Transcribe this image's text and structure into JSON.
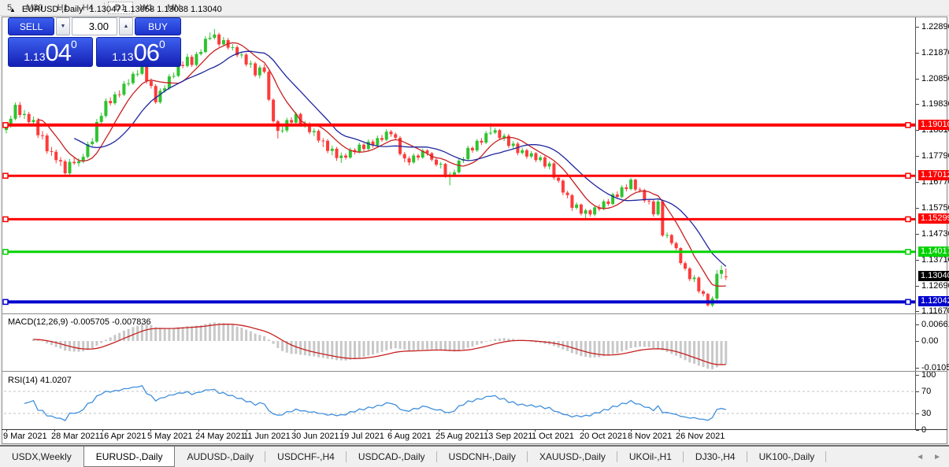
{
  "toolbar": {
    "timeframes": [
      "5",
      "M30",
      "H1",
      "H4",
      "D1",
      "W1",
      "MN"
    ],
    "active": "D1"
  },
  "chart_header": {
    "collapse_icon": "▲",
    "title": "EURUSD-,Daily",
    "ohlc_text": "1.13047 1.13058 1.13038 1.13040"
  },
  "trade_panel": {
    "sell_label": "SELL",
    "buy_label": "BUY",
    "volume": "3.00",
    "spin_down_icon": "▼",
    "spin_up_icon": "▲",
    "sell_price": {
      "prefix": "1.13",
      "big": "04",
      "sup": "0"
    },
    "buy_price": {
      "prefix": "1.13",
      "big": "06",
      "sup": "0"
    }
  },
  "price_axis": {
    "ticks": [
      "1.22890",
      "1.21870",
      "1.20850",
      "1.19830",
      "1.18810",
      "1.17790",
      "1.16770",
      "1.15750",
      "1.14730",
      "1.13710",
      "1.12690",
      "1.11670"
    ]
  },
  "time_axis": {
    "labels": [
      "9 Mar 2021",
      "28 Mar 2021",
      "16 Apr 2021",
      "5 May 2021",
      "24 May 2021",
      "11 Jun 2021",
      "30 Jun 2021",
      "19 Jul 2021",
      "6 Aug 2021",
      "25 Aug 2021",
      "13 Sep 2021",
      "1 Oct 2021",
      "20 Oct 2021",
      "8 Nov 2021",
      "26 Nov 2021"
    ]
  },
  "indicators": {
    "macd_label": "MACD(12,26,9) -0.005705 -0.007836",
    "rsi_label": "RSI(14) 41.0207",
    "macd_axis_ticks": [
      "0.006613",
      "0.00",
      "-0.010595"
    ],
    "rsi_axis_ticks": [
      "100",
      "70",
      "30",
      "0"
    ]
  },
  "tabs": {
    "items": [
      "USDX,Weekly",
      "EURUSD-,Daily",
      "AUDUSD-,Daily",
      "USDCHF-,H4",
      "USDCAD-,Daily",
      "USDCNH-,Daily",
      "XAUUSD-,Daily",
      "UKOil-,H1",
      "DJ30-,H4",
      "UK100-,Daily"
    ],
    "active_index": 1,
    "scroll_left_icon": "◄",
    "scroll_right_icon": "►"
  },
  "chart_data": [
    {
      "type": "candlestick",
      "title": "EURUSD-,Daily",
      "ylim": [
        1.1162,
        1.2307
      ],
      "up_color": "#2fc32f",
      "down_color": "#fd3b3b",
      "ma_fast": {
        "period": 8,
        "color": "#c62020"
      },
      "ma_slow": {
        "period": 16,
        "color": "#20269e"
      },
      "hlines": [
        {
          "value": 1.1901,
          "label": "1.19010",
          "color": "#fe0000",
          "width": 4
        },
        {
          "value": 1.17012,
          "label": "1.17012",
          "color": "#fe0000",
          "width": 3
        },
        {
          "value": 1.15299,
          "label": "1.15299",
          "color": "#fe0000",
          "width": 3
        },
        {
          "value": 1.14017,
          "label": "1.14017",
          "color": "#00d300",
          "width": 3
        },
        {
          "value": 1.12042,
          "label": "1.12042",
          "color": "#0000cf",
          "width": 4
        }
      ],
      "current_price": {
        "value": 1.1304,
        "label": "1.13040",
        "color": "#000000"
      },
      "candles": [
        [
          1.1882,
          1.1912,
          1.1868,
          1.19
        ],
        [
          1.19,
          1.1938,
          1.189,
          1.1926
        ],
        [
          1.1926,
          1.199,
          1.192,
          1.1981
        ],
        [
          1.1981,
          1.1992,
          1.193,
          1.1941
        ],
        [
          1.1941,
          1.1961,
          1.1925,
          1.1945
        ],
        [
          1.1945,
          1.1953,
          1.19,
          1.1913
        ],
        [
          1.1913,
          1.1935,
          1.1905,
          1.1921
        ],
        [
          1.1921,
          1.1929,
          1.185,
          1.1861
        ],
        [
          1.1861,
          1.1878,
          1.1844,
          1.186
        ],
        [
          1.186,
          1.1868,
          1.1788,
          1.1798
        ],
        [
          1.1798,
          1.1815,
          1.178,
          1.1796
        ],
        [
          1.1796,
          1.1805,
          1.175,
          1.1763
        ],
        [
          1.1763,
          1.1775,
          1.174,
          1.1758
        ],
        [
          1.1758,
          1.1765,
          1.17,
          1.1711
        ],
        [
          1.1711,
          1.1768,
          1.1704,
          1.1756
        ],
        [
          1.1756,
          1.1773,
          1.1744,
          1.1751
        ],
        [
          1.1751,
          1.177,
          1.1738,
          1.1758
        ],
        [
          1.1758,
          1.1788,
          1.175,
          1.1776
        ],
        [
          1.1776,
          1.1836,
          1.177,
          1.1826
        ],
        [
          1.1826,
          1.185,
          1.1818,
          1.1836
        ],
        [
          1.1836,
          1.1925,
          1.183,
          1.1913
        ],
        [
          1.1913,
          1.195,
          1.1905,
          1.1937
        ],
        [
          1.1937,
          1.2006,
          1.193,
          1.1996
        ],
        [
          1.1996,
          1.201,
          1.1978,
          1.1987
        ],
        [
          1.1987,
          1.2032,
          1.198,
          1.2022
        ],
        [
          1.2022,
          1.2038,
          1.201,
          1.2021
        ],
        [
          1.2021,
          1.2075,
          1.2015,
          1.2064
        ],
        [
          1.2064,
          1.2082,
          1.2055,
          1.2066
        ],
        [
          1.2066,
          1.2112,
          1.206,
          1.2103
        ],
        [
          1.2103,
          1.2118,
          1.2092,
          1.2103
        ],
        [
          1.2103,
          1.215,
          1.2098,
          1.2141
        ],
        [
          1.2141,
          1.2148,
          1.2064,
          1.2074
        ],
        [
          1.2074,
          1.2085,
          1.2045,
          1.2055
        ],
        [
          1.2055,
          1.2062,
          1.1985,
          1.1991
        ],
        [
          1.1991,
          1.2046,
          1.1985,
          1.2036
        ],
        [
          1.2036,
          1.2058,
          1.2028,
          1.2046
        ],
        [
          1.2046,
          1.2102,
          1.204,
          1.2093
        ],
        [
          1.2093,
          1.2108,
          1.2085,
          1.2095
        ],
        [
          1.2095,
          1.2148,
          1.209,
          1.2138
        ],
        [
          1.2138,
          1.2152,
          1.2125,
          1.2134
        ],
        [
          1.2134,
          1.2182,
          1.2128,
          1.217
        ],
        [
          1.217,
          1.2178,
          1.213,
          1.2138
        ],
        [
          1.2138,
          1.219,
          1.2132,
          1.2181
        ],
        [
          1.2181,
          1.22,
          1.2175,
          1.2189
        ],
        [
          1.2189,
          1.2251,
          1.2184,
          1.2241
        ],
        [
          1.2241,
          1.2266,
          1.2235,
          1.2245
        ],
        [
          1.2245,
          1.228,
          1.2238,
          1.2258
        ],
        [
          1.2258,
          1.2265,
          1.221,
          1.2219
        ],
        [
          1.2219,
          1.2248,
          1.2212,
          1.2236
        ],
        [
          1.2236,
          1.2244,
          1.2198,
          1.2206
        ],
        [
          1.2206,
          1.222,
          1.2195,
          1.2208
        ],
        [
          1.2208,
          1.2215,
          1.2168,
          1.2176
        ],
        [
          1.2176,
          1.219,
          1.2165,
          1.2179
        ],
        [
          1.2179,
          1.2185,
          1.2132,
          1.214
        ],
        [
          1.214,
          1.2155,
          1.2126,
          1.2144
        ],
        [
          1.2144,
          1.215,
          1.209,
          1.2097
        ],
        [
          1.2097,
          1.2136,
          1.2085,
          1.2128
        ],
        [
          1.2128,
          1.214,
          1.2104,
          1.2111
        ],
        [
          1.2111,
          1.2118,
          1.1995,
          1.2001
        ],
        [
          1.2001,
          1.2006,
          1.191,
          1.1916
        ],
        [
          1.1916,
          1.1922,
          1.1848,
          1.1878
        ],
        [
          1.1878,
          1.1895,
          1.187,
          1.188
        ],
        [
          1.188,
          1.193,
          1.1872,
          1.1921
        ],
        [
          1.1921,
          1.1932,
          1.1902,
          1.1911
        ],
        [
          1.1911,
          1.1952,
          1.1905,
          1.1945
        ],
        [
          1.1945,
          1.195,
          1.1895,
          1.1904
        ],
        [
          1.1904,
          1.1918,
          1.189,
          1.1906
        ],
        [
          1.1906,
          1.1912,
          1.1865,
          1.1873
        ],
        [
          1.1873,
          1.1888,
          1.1858,
          1.1878
        ],
        [
          1.1878,
          1.1884,
          1.1832,
          1.184
        ],
        [
          1.184,
          1.185,
          1.1815,
          1.1839
        ],
        [
          1.1839,
          1.1846,
          1.179,
          1.1799
        ],
        [
          1.1799,
          1.182,
          1.1782,
          1.1808
        ],
        [
          1.1808,
          1.1815,
          1.176,
          1.1771
        ],
        [
          1.1771,
          1.1793,
          1.1752,
          1.1781
        ],
        [
          1.1781,
          1.179,
          1.1765,
          1.1773
        ],
        [
          1.1773,
          1.1812,
          1.1768,
          1.1803
        ],
        [
          1.1803,
          1.181,
          1.1785,
          1.1795
        ],
        [
          1.1795,
          1.1832,
          1.179,
          1.1824
        ],
        [
          1.1824,
          1.183,
          1.1798,
          1.1807
        ],
        [
          1.1807,
          1.1845,
          1.18,
          1.1836
        ],
        [
          1.1836,
          1.1844,
          1.1812,
          1.1821
        ],
        [
          1.1821,
          1.186,
          1.1815,
          1.185
        ],
        [
          1.185,
          1.1862,
          1.1835,
          1.1843
        ],
        [
          1.1843,
          1.1885,
          1.1838,
          1.1875
        ],
        [
          1.1875,
          1.1882,
          1.1855,
          1.1865
        ],
        [
          1.1865,
          1.1872,
          1.1842,
          1.1851
        ],
        [
          1.1851,
          1.1858,
          1.178,
          1.1787
        ],
        [
          1.1787,
          1.1795,
          1.1755,
          1.177
        ],
        [
          1.177,
          1.1778,
          1.1742,
          1.1754
        ],
        [
          1.1754,
          1.179,
          1.1748,
          1.1781
        ],
        [
          1.1781,
          1.1788,
          1.1762,
          1.1773
        ],
        [
          1.1773,
          1.1808,
          1.1768,
          1.1801
        ],
        [
          1.1801,
          1.1806,
          1.178,
          1.179
        ],
        [
          1.179,
          1.1795,
          1.1758,
          1.1765
        ],
        [
          1.1765,
          1.1772,
          1.1738,
          1.1745
        ],
        [
          1.1745,
          1.1756,
          1.173,
          1.1748
        ],
        [
          1.1748,
          1.1752,
          1.1694,
          1.1705
        ],
        [
          1.1705,
          1.1716,
          1.1664,
          1.1706
        ],
        [
          1.1706,
          1.1726,
          1.17,
          1.1715
        ],
        [
          1.1715,
          1.177,
          1.171,
          1.1761
        ],
        [
          1.1761,
          1.1776,
          1.1752,
          1.1767
        ],
        [
          1.1767,
          1.182,
          1.176,
          1.1811
        ],
        [
          1.1811,
          1.1818,
          1.1792,
          1.1801
        ],
        [
          1.1801,
          1.1846,
          1.1795,
          1.1839
        ],
        [
          1.1839,
          1.185,
          1.1822,
          1.1832
        ],
        [
          1.1832,
          1.1878,
          1.1826,
          1.1869
        ],
        [
          1.1869,
          1.1909,
          1.1862,
          1.1871
        ],
        [
          1.1871,
          1.189,
          1.1865,
          1.1881
        ],
        [
          1.1881,
          1.1886,
          1.1842,
          1.185
        ],
        [
          1.185,
          1.1868,
          1.1838,
          1.1859
        ],
        [
          1.1859,
          1.1866,
          1.181,
          1.1819
        ],
        [
          1.1819,
          1.1838,
          1.1808,
          1.1828
        ],
        [
          1.1828,
          1.1835,
          1.1782,
          1.1791
        ],
        [
          1.1791,
          1.1812,
          1.1785,
          1.1802
        ],
        [
          1.1802,
          1.1808,
          1.1768,
          1.1777
        ],
        [
          1.1777,
          1.1798,
          1.177,
          1.179
        ],
        [
          1.179,
          1.1795,
          1.1755,
          1.1763
        ],
        [
          1.1763,
          1.1782,
          1.1756,
          1.1774
        ],
        [
          1.1774,
          1.178,
          1.173,
          1.1738
        ],
        [
          1.1738,
          1.1758,
          1.1726,
          1.175
        ],
        [
          1.175,
          1.1756,
          1.1685,
          1.1694
        ],
        [
          1.1694,
          1.17,
          1.1674,
          1.1682
        ],
        [
          1.1682,
          1.1688,
          1.1625,
          1.1635
        ],
        [
          1.1635,
          1.1642,
          1.1612,
          1.1625
        ],
        [
          1.1625,
          1.163,
          1.1563,
          1.1575
        ],
        [
          1.1575,
          1.1596,
          1.1568,
          1.1588
        ],
        [
          1.1588,
          1.1592,
          1.1545,
          1.1552
        ],
        [
          1.1552,
          1.1572,
          1.1529,
          1.1565
        ],
        [
          1.1565,
          1.157,
          1.154,
          1.1549
        ],
        [
          1.1549,
          1.1585,
          1.1542,
          1.1577
        ],
        [
          1.1577,
          1.1588,
          1.1562,
          1.157
        ],
        [
          1.157,
          1.1608,
          1.1565,
          1.16
        ],
        [
          1.16,
          1.161,
          1.1582,
          1.159
        ],
        [
          1.159,
          1.1635,
          1.1585,
          1.1628
        ],
        [
          1.1628,
          1.164,
          1.161,
          1.1618
        ],
        [
          1.1618,
          1.1664,
          1.1612,
          1.1656
        ],
        [
          1.1656,
          1.1668,
          1.164,
          1.1649
        ],
        [
          1.1649,
          1.1693,
          1.1644,
          1.1686
        ],
        [
          1.1686,
          1.169,
          1.164,
          1.1647
        ],
        [
          1.1647,
          1.1655,
          1.1635,
          1.1645
        ],
        [
          1.1645,
          1.165,
          1.1595,
          1.1603
        ],
        [
          1.1603,
          1.161,
          1.1588,
          1.16
        ],
        [
          1.16,
          1.1606,
          1.154,
          1.1549
        ],
        [
          1.1549,
          1.1608,
          1.1544,
          1.16
        ],
        [
          1.16,
          1.1604,
          1.146,
          1.1466
        ],
        [
          1.1466,
          1.1478,
          1.1455,
          1.1468
        ],
        [
          1.1468,
          1.1472,
          1.1428,
          1.1436
        ],
        [
          1.1436,
          1.1442,
          1.1408,
          1.1416
        ],
        [
          1.1416,
          1.142,
          1.135,
          1.1357
        ],
        [
          1.1357,
          1.1364,
          1.1328,
          1.1336
        ],
        [
          1.1336,
          1.1342,
          1.1286,
          1.1294
        ],
        [
          1.1294,
          1.131,
          1.1282,
          1.13
        ],
        [
          1.13,
          1.1305,
          1.1238,
          1.1246
        ],
        [
          1.1246,
          1.1252,
          1.1226,
          1.1236
        ],
        [
          1.1236,
          1.124,
          1.1186,
          1.1191
        ],
        [
          1.1191,
          1.1226,
          1.1184,
          1.1218
        ],
        [
          1.1218,
          1.133,
          1.121,
          1.1315
        ],
        [
          1.1315,
          1.1348,
          1.1295,
          1.133
        ],
        [
          1.1305,
          1.1336,
          1.129,
          1.1304
        ]
      ]
    },
    {
      "type": "macd",
      "name": "MACD(12,26,9)",
      "value_main": -0.005705,
      "value_signal": -0.007836,
      "fast": 12,
      "slow": 26,
      "signal": 9,
      "yticks": [
        0.006613,
        0,
        -0.010595
      ],
      "histogram_color": "#c8c8c8",
      "signal_color": "#c62020"
    },
    {
      "type": "rsi",
      "name": "RSI(14)",
      "period": 14,
      "current": 41.0207,
      "levels": [
        70,
        30
      ],
      "yticks": [
        100,
        70,
        30,
        0
      ],
      "line_color": "#3f8fde",
      "level_color": "#c3c3c3"
    }
  ]
}
